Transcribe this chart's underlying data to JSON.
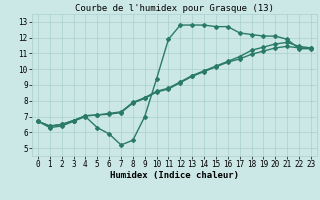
{
  "title": "Courbe de l'humidex pour Grasque (13)",
  "xlabel": "Humidex (Indice chaleur)",
  "xlim": [
    -0.5,
    23.5
  ],
  "ylim": [
    4.5,
    13.5
  ],
  "xticks": [
    0,
    1,
    2,
    3,
    4,
    5,
    6,
    7,
    8,
    9,
    10,
    11,
    12,
    13,
    14,
    15,
    16,
    17,
    18,
    19,
    20,
    21,
    22,
    23
  ],
  "yticks": [
    5,
    6,
    7,
    8,
    9,
    10,
    11,
    12,
    13
  ],
  "bg_color": "#cce8e6",
  "grid_color": "#aacfcd",
  "line_color": "#2a7a6a",
  "line1_x": [
    0,
    1,
    2,
    3,
    4,
    5,
    6,
    7,
    8,
    9,
    10,
    11,
    12,
    13,
    14,
    15,
    16,
    17,
    18,
    19,
    20,
    21,
    22,
    23
  ],
  "line1_y": [
    6.7,
    6.3,
    6.4,
    6.7,
    7.0,
    6.3,
    5.9,
    5.2,
    5.5,
    7.0,
    9.4,
    11.9,
    12.8,
    12.8,
    12.8,
    12.7,
    12.7,
    12.3,
    12.2,
    12.1,
    12.1,
    11.9,
    11.3,
    11.3
  ],
  "line2_x": [
    0,
    1,
    2,
    3,
    4,
    5,
    6,
    7,
    8,
    9,
    10,
    11,
    12,
    13,
    14,
    15,
    16,
    17,
    18,
    19,
    20,
    21,
    22,
    23
  ],
  "line2_y": [
    6.7,
    6.4,
    6.5,
    6.75,
    7.05,
    7.1,
    7.15,
    7.25,
    7.85,
    8.15,
    8.55,
    8.75,
    9.15,
    9.55,
    9.85,
    10.15,
    10.45,
    10.65,
    10.95,
    11.15,
    11.35,
    11.45,
    11.35,
    11.35
  ],
  "line3_x": [
    0,
    1,
    2,
    3,
    4,
    5,
    6,
    7,
    8,
    9,
    10,
    11,
    12,
    13,
    14,
    15,
    16,
    17,
    18,
    19,
    20,
    21,
    22,
    23
  ],
  "line3_y": [
    6.7,
    6.4,
    6.5,
    6.75,
    7.05,
    7.1,
    7.2,
    7.3,
    7.9,
    8.2,
    8.6,
    8.8,
    9.2,
    9.6,
    9.9,
    10.2,
    10.5,
    10.8,
    11.2,
    11.4,
    11.6,
    11.7,
    11.45,
    11.35
  ],
  "marker": "D",
  "marker_size": 2.0,
  "linewidth": 1.0,
  "title_fontsize": 6.5,
  "tick_fontsize": 5.5,
  "xlabel_fontsize": 6.5
}
